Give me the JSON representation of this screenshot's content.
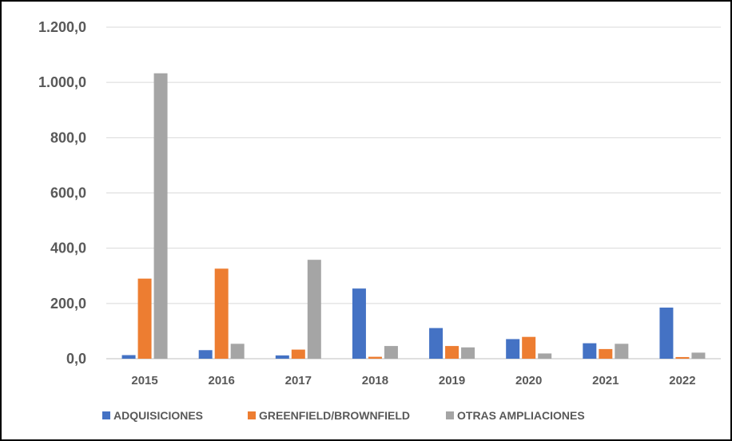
{
  "chart_data": {
    "type": "bar",
    "categories": [
      "2015",
      "2016",
      "2017",
      "2018",
      "2019",
      "2020",
      "2021",
      "2022"
    ],
    "series": [
      {
        "name": "ADQUISICIONES",
        "color": "#4472C4",
        "values": [
          13,
          31,
          12,
          254,
          111,
          71,
          56,
          185
        ]
      },
      {
        "name": "GREENFIELD/BROWNFIELD",
        "color": "#ED7D31",
        "values": [
          290,
          326,
          33,
          7,
          46,
          79,
          35,
          6
        ]
      },
      {
        "name": "OTRAS AMPLIACIONES",
        "color": "#A5A5A5",
        "values": [
          1033,
          54,
          358,
          46,
          41,
          19,
          54,
          22
        ]
      }
    ],
    "ylim": [
      0,
      1200
    ],
    "yticks": [
      "0,0",
      "200,0",
      "400,0",
      "600,0",
      "800,0",
      "1.000,0",
      "1.200,0"
    ],
    "grid": true,
    "legend_position": "bottom"
  }
}
